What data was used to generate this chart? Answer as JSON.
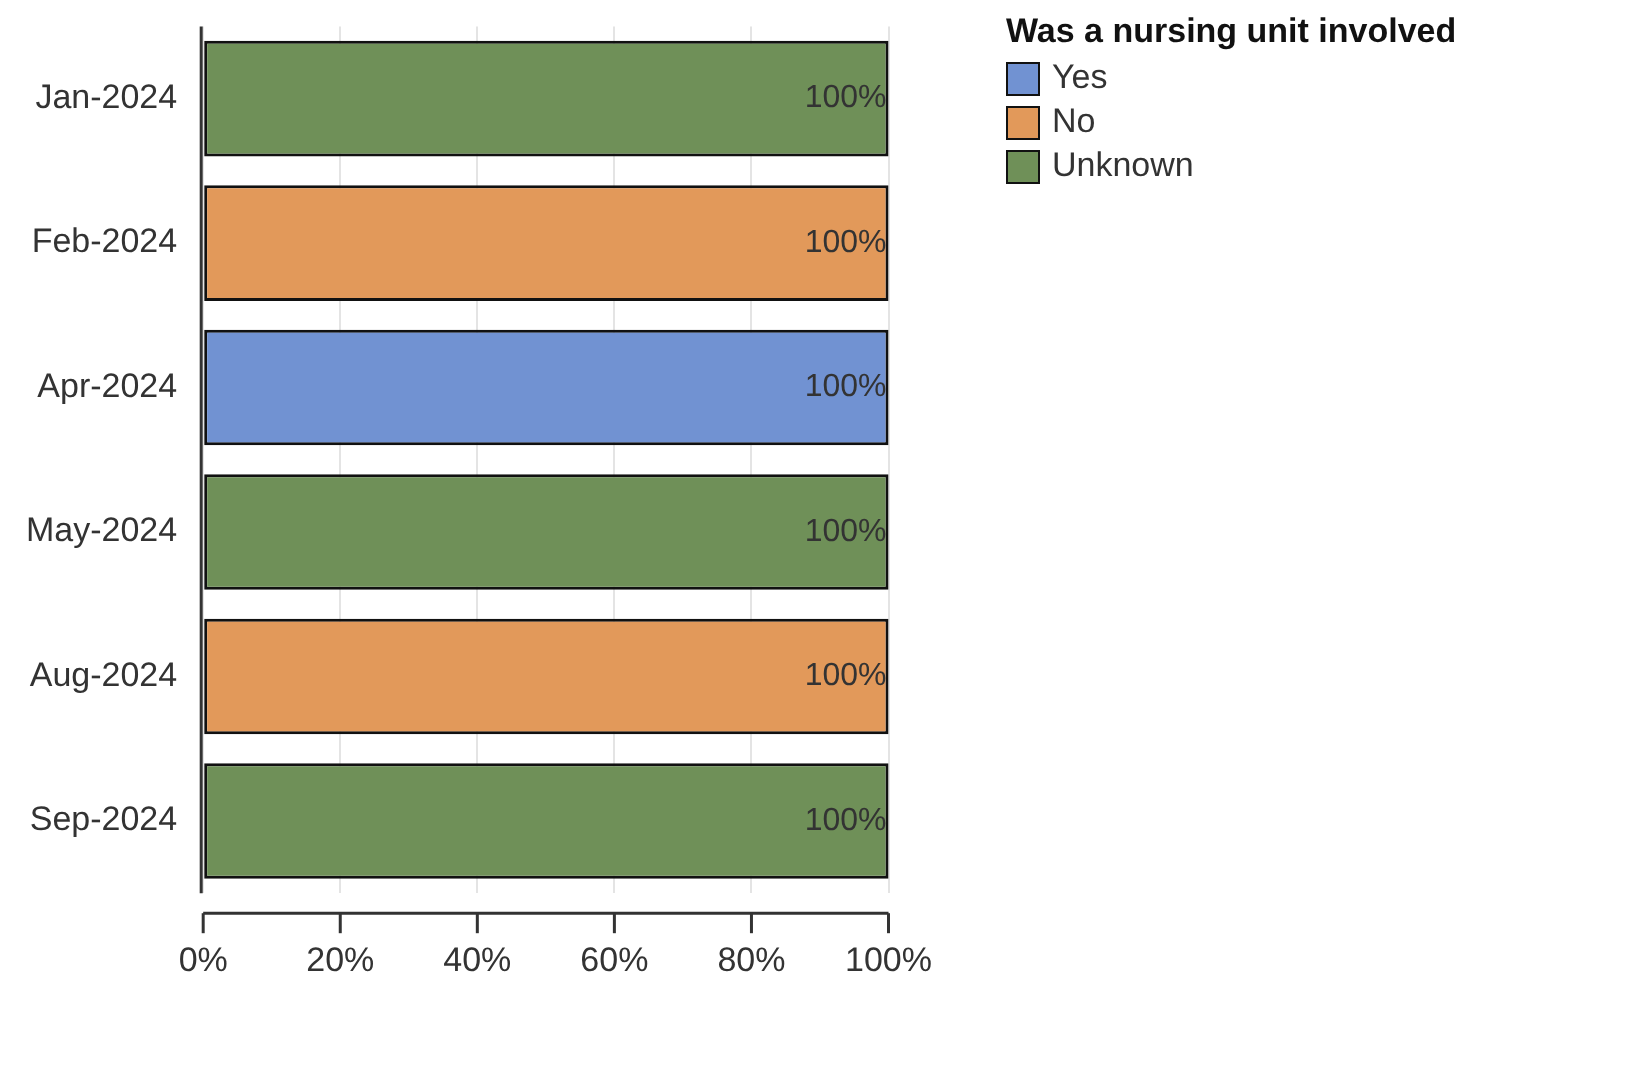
{
  "chart_data": {
    "type": "bar",
    "orientation": "horizontal",
    "stacked": true,
    "legend_title": "Was a nursing unit involved",
    "legend": "top right",
    "categories": [
      "Jan-2024",
      "Feb-2024",
      "Apr-2024",
      "May-2024",
      "Aug-2024",
      "Sep-2024"
    ],
    "series": [
      {
        "name": "Yes",
        "color": "#7192d2",
        "values": [
          0,
          0,
          100,
          0,
          0,
          0
        ],
        "value_labels": [
          null,
          null,
          "100%",
          null,
          null,
          null
        ]
      },
      {
        "name": "No",
        "color": "#e2995a",
        "values": [
          0,
          100,
          0,
          0,
          100,
          0
        ],
        "value_labels": [
          null,
          "100%",
          null,
          null,
          "100%",
          null
        ]
      },
      {
        "name": "Unknown",
        "color": "#6f9058",
        "values": [
          100,
          0,
          0,
          100,
          0,
          100
        ],
        "value_labels": [
          "100%",
          null,
          null,
          "100%",
          null,
          "100%"
        ]
      }
    ],
    "xlim": [
      0,
      100
    ],
    "xticks": [
      {
        "value": 0,
        "label": "0%"
      },
      {
        "value": 20,
        "label": "20%"
      },
      {
        "value": 40,
        "label": "40%"
      },
      {
        "value": 60,
        "label": "60%"
      },
      {
        "value": 80,
        "label": "80%"
      },
      {
        "value": 100,
        "label": "100%"
      }
    ],
    "grid": "x"
  }
}
